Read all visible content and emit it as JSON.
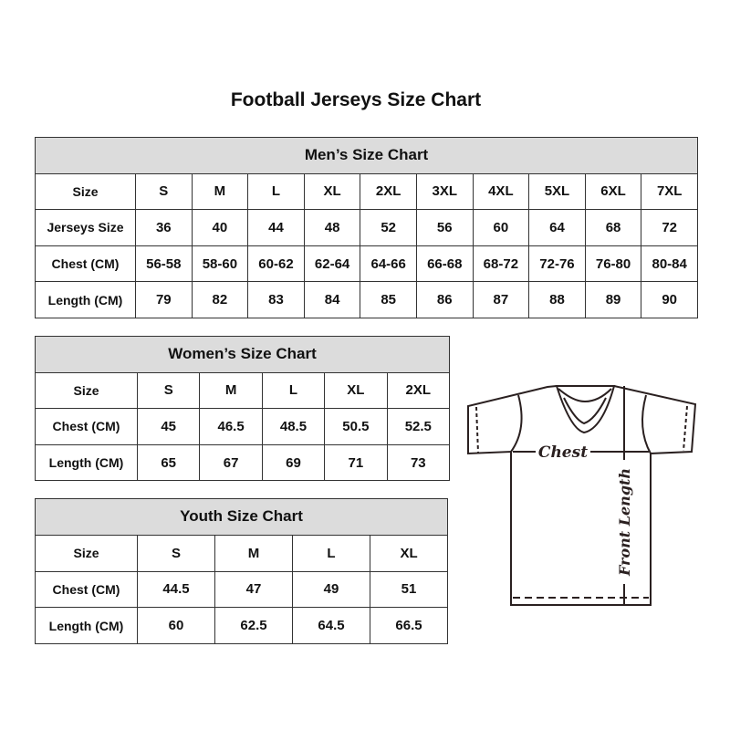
{
  "title": "Football Jerseys Size Chart",
  "men": {
    "heading": "Men’s Size Chart",
    "rows": [
      {
        "label": "Size",
        "values": [
          "S",
          "M",
          "L",
          "XL",
          "2XL",
          "3XL",
          "4XL",
          "5XL",
          "6XL",
          "7XL"
        ]
      },
      {
        "label": "Jerseys Size",
        "values": [
          "36",
          "40",
          "44",
          "48",
          "52",
          "56",
          "60",
          "64",
          "68",
          "72"
        ]
      },
      {
        "label": "Chest (CM)",
        "values": [
          "56-58",
          "58-60",
          "60-62",
          "62-64",
          "64-66",
          "66-68",
          "68-72",
          "72-76",
          "76-80",
          "80-84"
        ]
      },
      {
        "label": "Length (CM)",
        "values": [
          "79",
          "82",
          "83",
          "84",
          "85",
          "86",
          "87",
          "88",
          "89",
          "90"
        ]
      }
    ]
  },
  "women": {
    "heading": "Women’s Size Chart",
    "rows": [
      {
        "label": "Size",
        "values": [
          "S",
          "M",
          "L",
          "XL",
          "2XL"
        ]
      },
      {
        "label": "Chest (CM)",
        "values": [
          "45",
          "46.5",
          "48.5",
          "50.5",
          "52.5"
        ]
      },
      {
        "label": "Length (CM)",
        "values": [
          "65",
          "67",
          "69",
          "71",
          "73"
        ]
      }
    ]
  },
  "youth": {
    "heading": "Youth Size Chart",
    "rows": [
      {
        "label": "Size",
        "values": [
          "S",
          "M",
          "L",
          "XL"
        ]
      },
      {
        "label": "Chest (CM)",
        "values": [
          "44.5",
          "47",
          "49",
          "51"
        ]
      },
      {
        "label": "Length (CM)",
        "values": [
          "60",
          "62.5",
          "64.5",
          "66.5"
        ]
      }
    ]
  },
  "diagram": {
    "chest_label": "Chest",
    "length_label": "Front Length"
  }
}
